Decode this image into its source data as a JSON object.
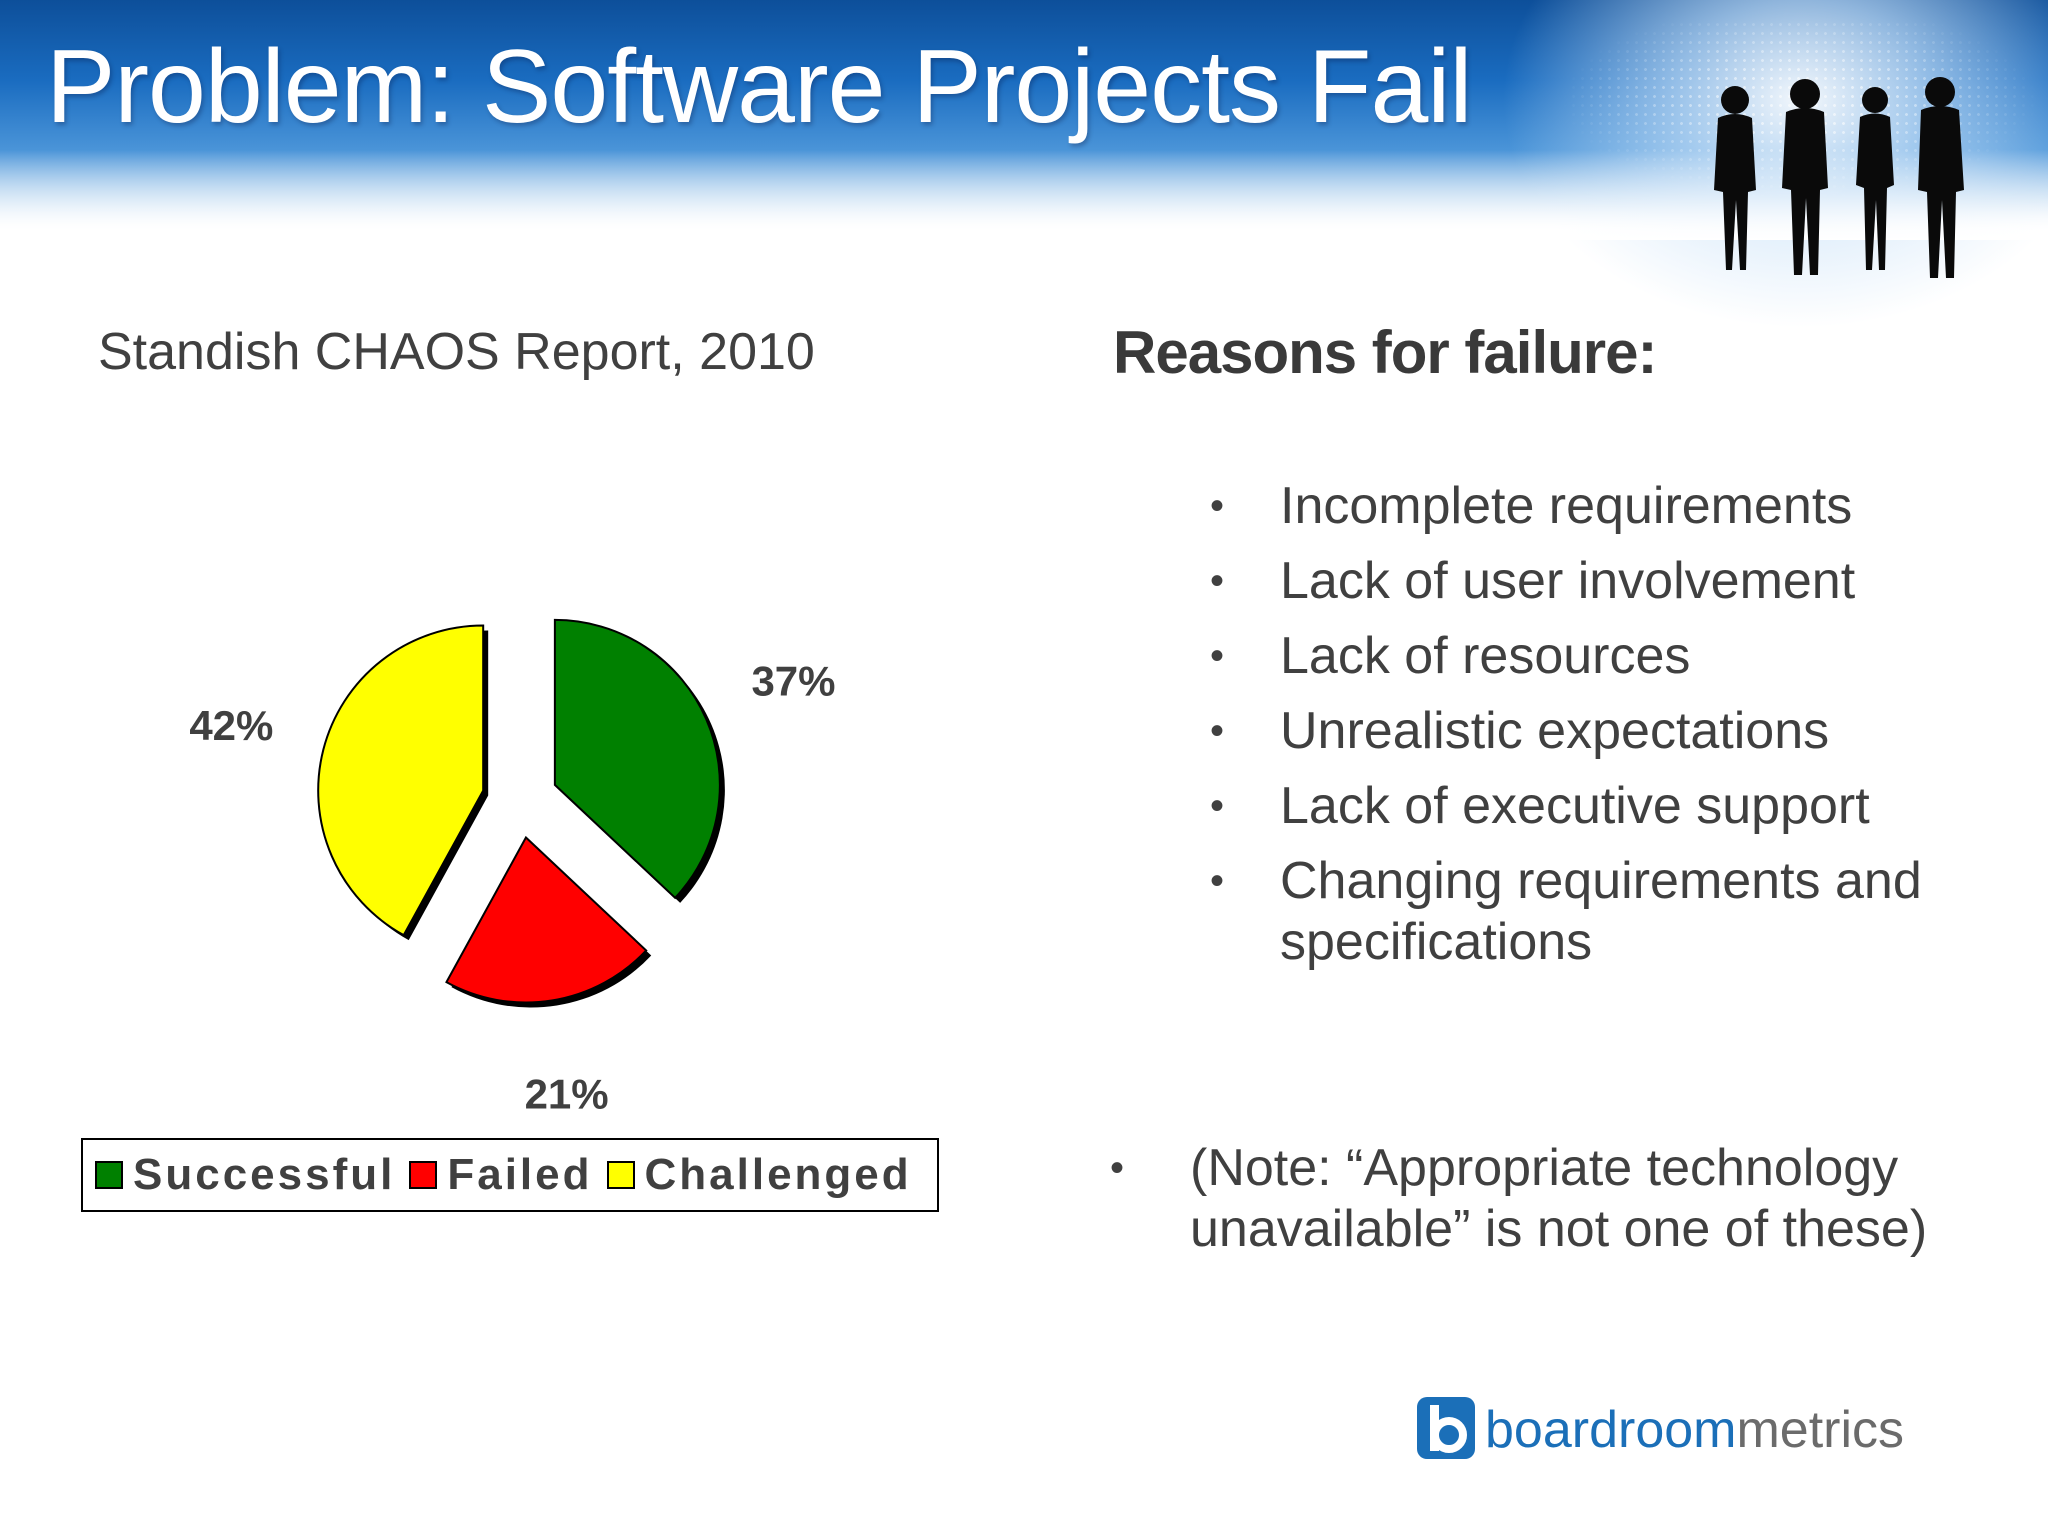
{
  "slide": {
    "title": "Problem: Software Projects Fail"
  },
  "chart_data": {
    "type": "pie",
    "title": "Standish CHAOS Report, 2010",
    "labels": [
      "Successful",
      "Failed",
      "Challenged"
    ],
    "values": [
      37,
      21,
      42
    ],
    "data_labels": [
      "37%",
      "21%",
      "42%"
    ],
    "colors": [
      "#008000",
      "#ff0000",
      "#ffff00"
    ],
    "exploded": true,
    "legend": "bottom"
  },
  "reasons": {
    "title": "Reasons for failure:",
    "items": [
      "Incomplete requirements",
      "Lack of user involvement",
      "Lack of resources",
      "Unrealistic expectations",
      "Lack of executive support",
      "Changing requirements and specifications"
    ],
    "bullet": "•"
  },
  "note": {
    "text": "(Note: “Appropriate technology unavailable” is not one of these)"
  },
  "logo": {
    "part1": "boardroom",
    "part2": "metrics"
  },
  "icons": {
    "header_image": "people-silhouette-icon",
    "logo_mark": "boardroommetrics-logo-icon"
  }
}
